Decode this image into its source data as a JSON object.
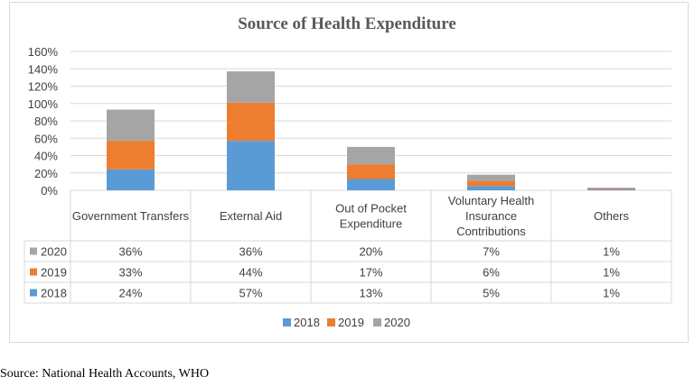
{
  "chart_data": {
    "type": "bar",
    "stacked": true,
    "title": "Source of Health Expenditure",
    "categories": [
      "Government Transfers",
      "External Aid",
      "Out of Pocket Expenditure",
      "Voluntary Health Insurance Contributions",
      "Others"
    ],
    "series": [
      {
        "name": "2018",
        "color": "#5b9bd5",
        "values": [
          24,
          57,
          13,
          5,
          1
        ],
        "labels": [
          "24%",
          "57%",
          "13%",
          "5%",
          "1%"
        ]
      },
      {
        "name": "2019",
        "color": "#ed7d31",
        "values": [
          33,
          44,
          17,
          6,
          1
        ],
        "labels": [
          "33%",
          "44%",
          "17%",
          "6%",
          "1%"
        ]
      },
      {
        "name": "2020",
        "color": "#a5a5a5",
        "values": [
          36,
          36,
          20,
          7,
          1
        ],
        "labels": [
          "36%",
          "36%",
          "20%",
          "7%",
          "1%"
        ]
      }
    ],
    "yticks": [
      "0%",
      "20%",
      "40%",
      "60%",
      "80%",
      "100%",
      "120%",
      "140%",
      "160%"
    ],
    "ylim": [
      0,
      160
    ],
    "grid": true,
    "legend": "bottom",
    "data_table": true
  },
  "source": "Source: National Health Accounts, WHO"
}
